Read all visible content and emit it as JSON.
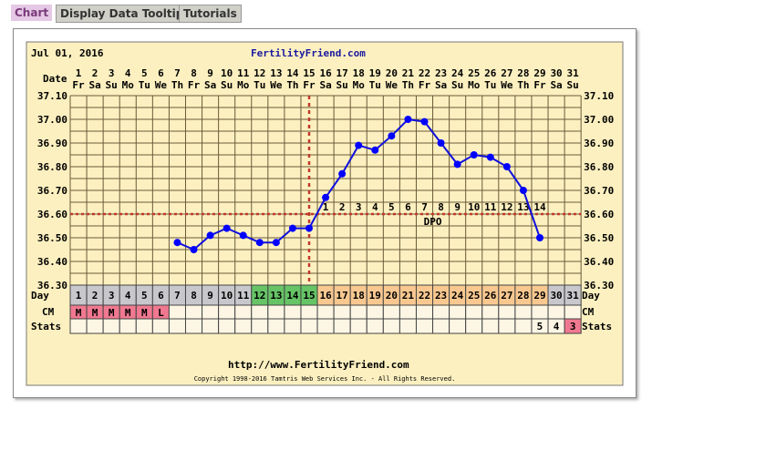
{
  "tabs": [
    {
      "label": "Chart"
    },
    {
      "label": "Display Data Tooltip"
    },
    {
      "label": "Tutorials"
    }
  ],
  "header": {
    "date": "Jul 01, 2016",
    "brand": "FertilityFriend.com"
  },
  "footer": {
    "url": "http://www.FertilityFriend.com",
    "copyright": "Copyright 1998-2016 Tamtris Web Services Inc. - All Rights Reserved."
  },
  "row_labels": {
    "date": "Date",
    "day": "Day",
    "cm": "CM",
    "stats": "Stats",
    "dpo": "DPO"
  },
  "chart_data": {
    "type": "line",
    "ylabel": "",
    "ylim": [
      36.3,
      37.1
    ],
    "yticks": [
      "37.10",
      "37.00",
      "36.90",
      "36.80",
      "36.70",
      "36.60",
      "36.50",
      "36.40",
      "36.30"
    ],
    "dates": [
      "1",
      "2",
      "3",
      "4",
      "5",
      "6",
      "7",
      "8",
      "9",
      "10",
      "11",
      "12",
      "13",
      "14",
      "15",
      "16",
      "17",
      "18",
      "19",
      "20",
      "21",
      "22",
      "23",
      "24",
      "25",
      "26",
      "27",
      "28",
      "29",
      "30",
      "31"
    ],
    "weekdays": [
      "Fr",
      "Sa",
      "Su",
      "Mo",
      "Tu",
      "We",
      "Th",
      "Fr",
      "Sa",
      "Su",
      "Mo",
      "Tu",
      "We",
      "Th",
      "Fr",
      "Sa",
      "Su",
      "Mo",
      "Tu",
      "We",
      "Th",
      "Fr",
      "Sa",
      "Su",
      "Mo",
      "Tu",
      "We",
      "Th",
      "Fr",
      "Sa",
      "Su"
    ],
    "temperatures": [
      null,
      null,
      null,
      null,
      null,
      null,
      36.48,
      36.45,
      36.51,
      36.54,
      36.51,
      36.48,
      36.48,
      36.54,
      36.54,
      36.67,
      36.77,
      36.89,
      36.87,
      36.93,
      37.0,
      36.99,
      36.9,
      36.81,
      36.85,
      36.84,
      36.8,
      36.7,
      36.5,
      null,
      null
    ],
    "coverline": 36.6,
    "ovulation_day": 15,
    "dpo_labels": [
      "1",
      "2",
      "3",
      "4",
      "5",
      "6",
      "7",
      "8",
      "9",
      "10",
      "11",
      "12",
      "13",
      "14"
    ],
    "cycle_days": [
      "1",
      "2",
      "3",
      "4",
      "5",
      "6",
      "7",
      "8",
      "9",
      "10",
      "11",
      "12",
      "13",
      "14",
      "15",
      "16",
      "17",
      "18",
      "19",
      "20",
      "21",
      "22",
      "23",
      "24",
      "25",
      "26",
      "27",
      "28",
      "29",
      "30",
      "31"
    ],
    "day_phase": [
      "gray",
      "gray",
      "gray",
      "gray",
      "gray",
      "gray",
      "gray",
      "gray",
      "gray",
      "gray",
      "gray",
      "fertile",
      "fertile",
      "fertile",
      "fertile",
      "luteal",
      "luteal",
      "luteal",
      "luteal",
      "luteal",
      "luteal",
      "luteal",
      "luteal",
      "luteal",
      "luteal",
      "luteal",
      "luteal",
      "luteal",
      "luteal",
      "gray",
      "gray"
    ],
    "cm": [
      "M",
      "M",
      "M",
      "M",
      "M",
      "L",
      "",
      "",
      "",
      "",
      "",
      "",
      "",
      "",
      "",
      "",
      "",
      "",
      "",
      "",
      "",
      "",
      "",
      "",
      "",
      "",
      "",
      "",
      "",
      "",
      ""
    ],
    "stats": [
      "",
      "",
      "",
      "",
      "",
      "",
      "",
      "",
      "",
      "",
      "",
      "",
      "",
      "",
      "",
      "",
      "",
      "",
      "",
      "",
      "",
      "",
      "",
      "",
      "",
      "",
      "",
      "",
      "5",
      "4",
      "3"
    ],
    "stats_highlight": [
      31
    ],
    "colors": {
      "line": "#1010dd",
      "point": "#0000ff",
      "coverline": "#c0392b",
      "gray": "#c8c8cc",
      "fertile": "#66c466",
      "luteal": "#f8c890",
      "cm": "#f07890",
      "stats_hl": "#f07890",
      "bg": "#fcf0c0"
    }
  }
}
